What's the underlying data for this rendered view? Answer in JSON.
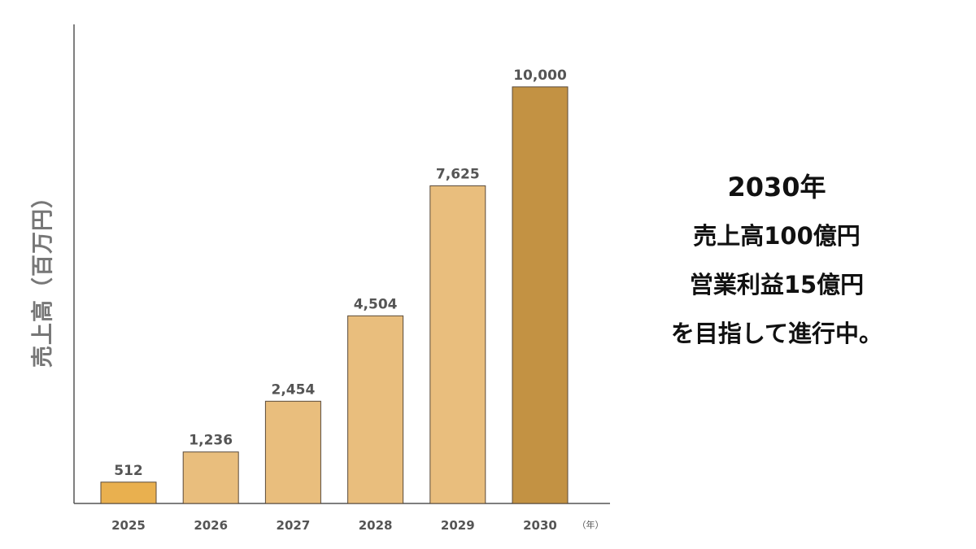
{
  "chart_data": {
    "type": "bar",
    "categories": [
      "2025",
      "2026",
      "2027",
      "2028",
      "2029",
      "2030"
    ],
    "values": [
      512,
      1236,
      2454,
      4504,
      7625,
      10000
    ],
    "value_labels": [
      "512",
      "1,236",
      "2,454",
      "4,504",
      "7,625",
      "10,000"
    ],
    "title": "",
    "xlabel": "",
    "x_unit": "（年）",
    "ylabel": "売上高（百万円）",
    "ylim": [
      0,
      11500
    ],
    "grid": false,
    "legend": "none",
    "colors": {
      "first": "#E9B04F",
      "middle": "#E9BE7D",
      "last": "#C39243",
      "bar_edge": "#5a4a3a",
      "axis": "#555555",
      "label": "#555555"
    }
  },
  "tagline": {
    "line1": "2030年",
    "line2": "売上高100億円",
    "line3": "営業利益15億円",
    "line4": "を目指して進行中。"
  }
}
